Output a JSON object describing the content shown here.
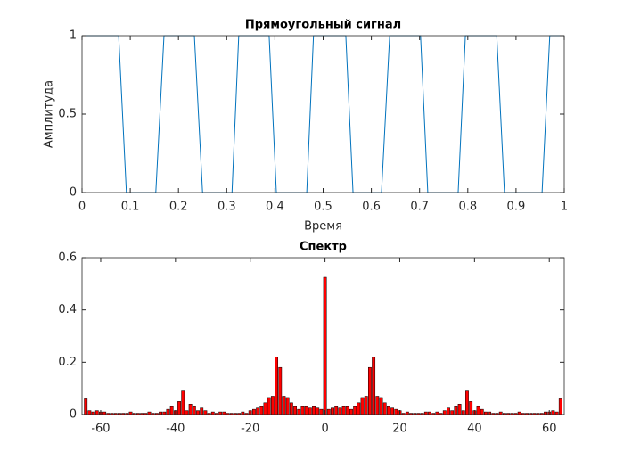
{
  "chart_data": [
    {
      "type": "line",
      "title": "Прямоугольный сигнал",
      "xlabel": "Время",
      "ylabel": "Амплитуда",
      "color": "#0072bd",
      "x": [
        0,
        0.076,
        0.092,
        0.153,
        0.17,
        0.233,
        0.25,
        0.311,
        0.325,
        0.388,
        0.403,
        0.466,
        0.48,
        0.547,
        0.562,
        0.621,
        0.638,
        0.702,
        0.717,
        0.78,
        0.795,
        0.86,
        0.876,
        0.954,
        0.97,
        1
      ],
      "values": [
        1,
        1,
        0,
        0,
        1,
        1,
        0,
        0,
        1,
        1,
        0,
        0,
        1,
        1,
        0,
        0,
        1,
        1,
        0,
        0,
        1,
        1,
        0,
        0,
        1,
        1
      ],
      "xlim": [
        0,
        1
      ],
      "ylim": [
        0,
        1
      ],
      "xticks": [
        0,
        0.1,
        0.2,
        0.3,
        0.4,
        0.5,
        0.6,
        0.7,
        0.8,
        0.9,
        1
      ],
      "yticks": [
        0,
        0.5,
        1
      ]
    },
    {
      "type": "bar",
      "title": "Спектр",
      "color": "#ff0000",
      "x": [
        -64,
        -63,
        -62,
        -61,
        -60,
        -59,
        -58,
        -57,
        -56,
        -55,
        -54,
        -53,
        -52,
        -51,
        -50,
        -49,
        -48,
        -47,
        -46,
        -45,
        -44,
        -43,
        -42,
        -41,
        -40,
        -39,
        -38,
        -37,
        -36,
        -35,
        -34,
        -33,
        -32,
        -31,
        -30,
        -29,
        -28,
        -27,
        -26,
        -25,
        -24,
        -23,
        -22,
        -21,
        -20,
        -19,
        -18,
        -17,
        -16,
        -15,
        -14,
        -13,
        -12,
        -11,
        -10,
        -9,
        -8,
        -7,
        -6,
        -5,
        -4,
        -3,
        -2,
        -1,
        0,
        1,
        2,
        3,
        4,
        5,
        6,
        7,
        8,
        9,
        10,
        11,
        12,
        13,
        14,
        15,
        16,
        17,
        18,
        19,
        20,
        21,
        22,
        23,
        24,
        25,
        26,
        27,
        28,
        29,
        30,
        31,
        32,
        33,
        34,
        35,
        36,
        37,
        38,
        39,
        40,
        41,
        42,
        43,
        44,
        45,
        46,
        47,
        48,
        49,
        50,
        51,
        52,
        53,
        54,
        55,
        56,
        57,
        58,
        59,
        60,
        61,
        62,
        63
      ],
      "values": [
        0.06,
        0.015,
        0.01,
        0.015,
        0.01,
        0.01,
        0.005,
        0.005,
        0.005,
        0.005,
        0.005,
        0.005,
        0.01,
        0.005,
        0.005,
        0.005,
        0.005,
        0.01,
        0.005,
        0.005,
        0.01,
        0.01,
        0.02,
        0.03,
        0.015,
        0.05,
        0.09,
        0.015,
        0.04,
        0.03,
        0.015,
        0.025,
        0.015,
        0.005,
        0.01,
        0.005,
        0.01,
        0.01,
        0.005,
        0.005,
        0.005,
        0.005,
        0.01,
        0.005,
        0.015,
        0.02,
        0.025,
        0.03,
        0.045,
        0.065,
        0.07,
        0.22,
        0.18,
        0.07,
        0.065,
        0.045,
        0.03,
        0.02,
        0.03,
        0.03,
        0.025,
        0.03,
        0.025,
        0.02,
        0.525,
        0.02,
        0.025,
        0.03,
        0.025,
        0.03,
        0.03,
        0.02,
        0.03,
        0.045,
        0.065,
        0.07,
        0.18,
        0.22,
        0.07,
        0.065,
        0.045,
        0.03,
        0.025,
        0.02,
        0.015,
        0.005,
        0.01,
        0.005,
        0.005,
        0.005,
        0.005,
        0.01,
        0.01,
        0.005,
        0.01,
        0.005,
        0.015,
        0.025,
        0.015,
        0.03,
        0.04,
        0.015,
        0.09,
        0.05,
        0.015,
        0.03,
        0.02,
        0.01,
        0.01,
        0.005,
        0.005,
        0.01,
        0.005,
        0.005,
        0.005,
        0.005,
        0.01,
        0.005,
        0.005,
        0.005,
        0.005,
        0.005,
        0.005,
        0.01,
        0.01,
        0.015,
        0.01,
        0.06
      ],
      "xlim": [
        -65,
        64
      ],
      "ylim": [
        0,
        0.6
      ],
      "xticks": [
        -60,
        -40,
        -20,
        0,
        20,
        40,
        60
      ],
      "yticks": [
        0,
        0.2,
        0.4,
        0.6
      ]
    }
  ]
}
